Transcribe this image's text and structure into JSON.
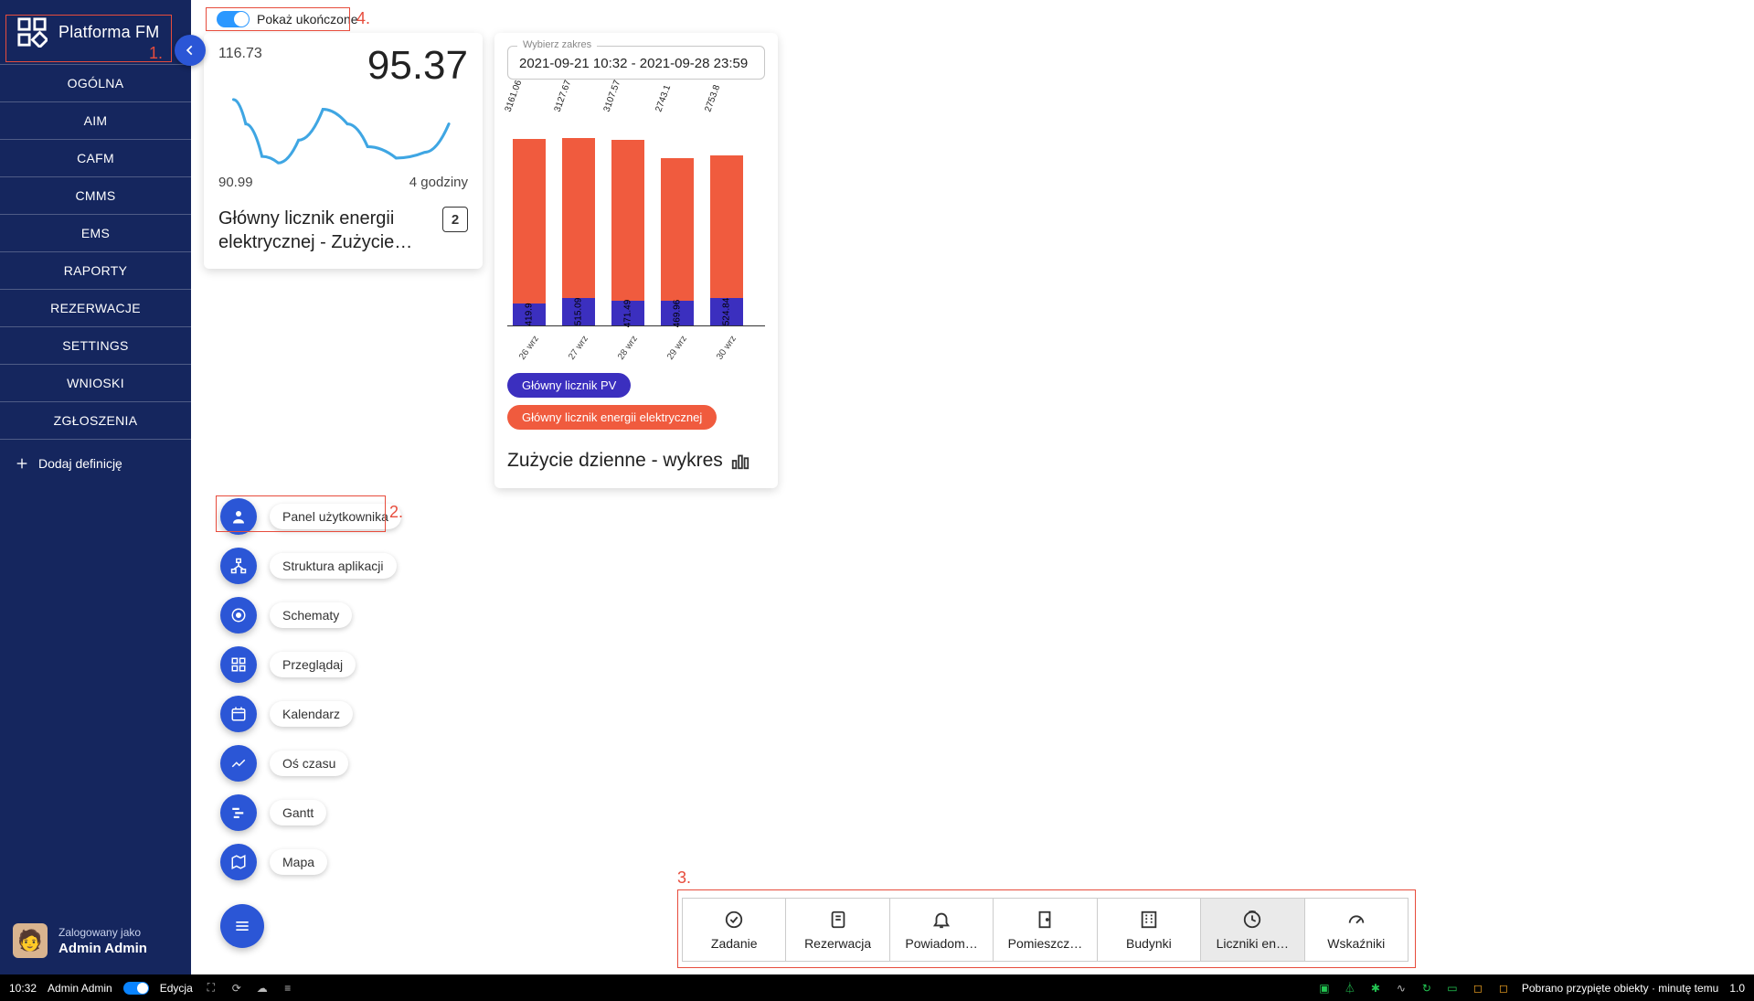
{
  "annotations": {
    "1": "1.",
    "2": "2.",
    "3": "3.",
    "4": "4."
  },
  "sidebar": {
    "title": "Platforma FM",
    "nav": [
      "OGÓLNA",
      "AIM",
      "CAFM",
      "CMMS",
      "EMS",
      "RAPORTY",
      "REZERWACJE",
      "SETTINGS",
      "WNIOSKI",
      "ZGŁOSZENIA"
    ],
    "add_def": "Dodaj definicję",
    "user": {
      "line1": "Zalogowany jako",
      "line2": "Admin Admin"
    }
  },
  "toggle": {
    "label": "Pokaż ukończone"
  },
  "meter_card": {
    "top_left": "116.73",
    "top_right": "95.37",
    "bottom_left": "90.99",
    "bottom_right": "4 godziny",
    "title": "Główny licznik energii elektrycznej - Zużycie…",
    "icon_text": "2",
    "spark_color": "#3fa6e3",
    "spark_points": [
      [
        0,
        10
      ],
      [
        15,
        40
      ],
      [
        35,
        80
      ],
      [
        55,
        88
      ],
      [
        80,
        60
      ],
      [
        110,
        22
      ],
      [
        140,
        40
      ],
      [
        165,
        68
      ],
      [
        200,
        82
      ],
      [
        235,
        75
      ],
      [
        265,
        40
      ]
    ]
  },
  "bars_card": {
    "range_label": "Wybierz zakres",
    "range_value": "2021-09-21 10:32 - 2021-09-28 23:59",
    "color_top": "#f05b3e",
    "color_bot": "#3b2fbf",
    "bars": [
      {
        "x": "26 wrz",
        "top_lbl": "3161.06",
        "bot_lbl": "419.9",
        "top_h": 180,
        "bot_h": 24
      },
      {
        "x": "27 wrz",
        "top_lbl": "3127.67",
        "bot_lbl": "515.09",
        "top_h": 175,
        "bot_h": 30
      },
      {
        "x": "28 wrz",
        "top_lbl": "3107.57",
        "bot_lbl": "471.49",
        "top_h": 176,
        "bot_h": 27
      },
      {
        "x": "29 wrz",
        "top_lbl": "2743.1",
        "bot_lbl": "469.96",
        "top_h": 156,
        "bot_h": 27
      },
      {
        "x": "30 wrz",
        "top_lbl": "2753.8",
        "bot_lbl": "524.84",
        "top_h": 156,
        "bot_h": 30
      }
    ],
    "chips": [
      {
        "label": "Główny licznik PV",
        "bg": "#3b2fbf"
      },
      {
        "label": "Główny licznik energii elektrycznej",
        "bg": "#f05b3e"
      }
    ],
    "title": "Zużycie dzienne - wykres"
  },
  "fabs": [
    {
      "icon": "person",
      "label": "Panel użytkownika"
    },
    {
      "icon": "tree",
      "label": "Struktura aplikacji"
    },
    {
      "icon": "schema",
      "label": "Schematy"
    },
    {
      "icon": "grid",
      "label": "Przeglądaj"
    },
    {
      "icon": "calendar",
      "label": "Kalendarz"
    },
    {
      "icon": "timeline",
      "label": "Oś czasu"
    },
    {
      "icon": "gantt",
      "label": "Gantt"
    },
    {
      "icon": "map",
      "label": "Mapa"
    }
  ],
  "fab_menu_icon": "menu",
  "tabstrip": [
    {
      "icon": "check",
      "label": "Zadanie",
      "active": false
    },
    {
      "icon": "card",
      "label": "Rezerwacja",
      "active": false
    },
    {
      "icon": "bell",
      "label": "Powiadom…",
      "active": false
    },
    {
      "icon": "door",
      "label": "Pomieszcz…",
      "active": false
    },
    {
      "icon": "building",
      "label": "Budynki",
      "active": false
    },
    {
      "icon": "meter",
      "label": "Liczniki en…",
      "active": true
    },
    {
      "icon": "gauge",
      "label": "Wskaźniki",
      "active": false
    }
  ],
  "statusbar": {
    "time": "10:32",
    "user": "Admin Admin",
    "mode": "Edycja",
    "right_text": "Pobrano przypięte obiekty · minutę temu",
    "version": "1.0"
  }
}
